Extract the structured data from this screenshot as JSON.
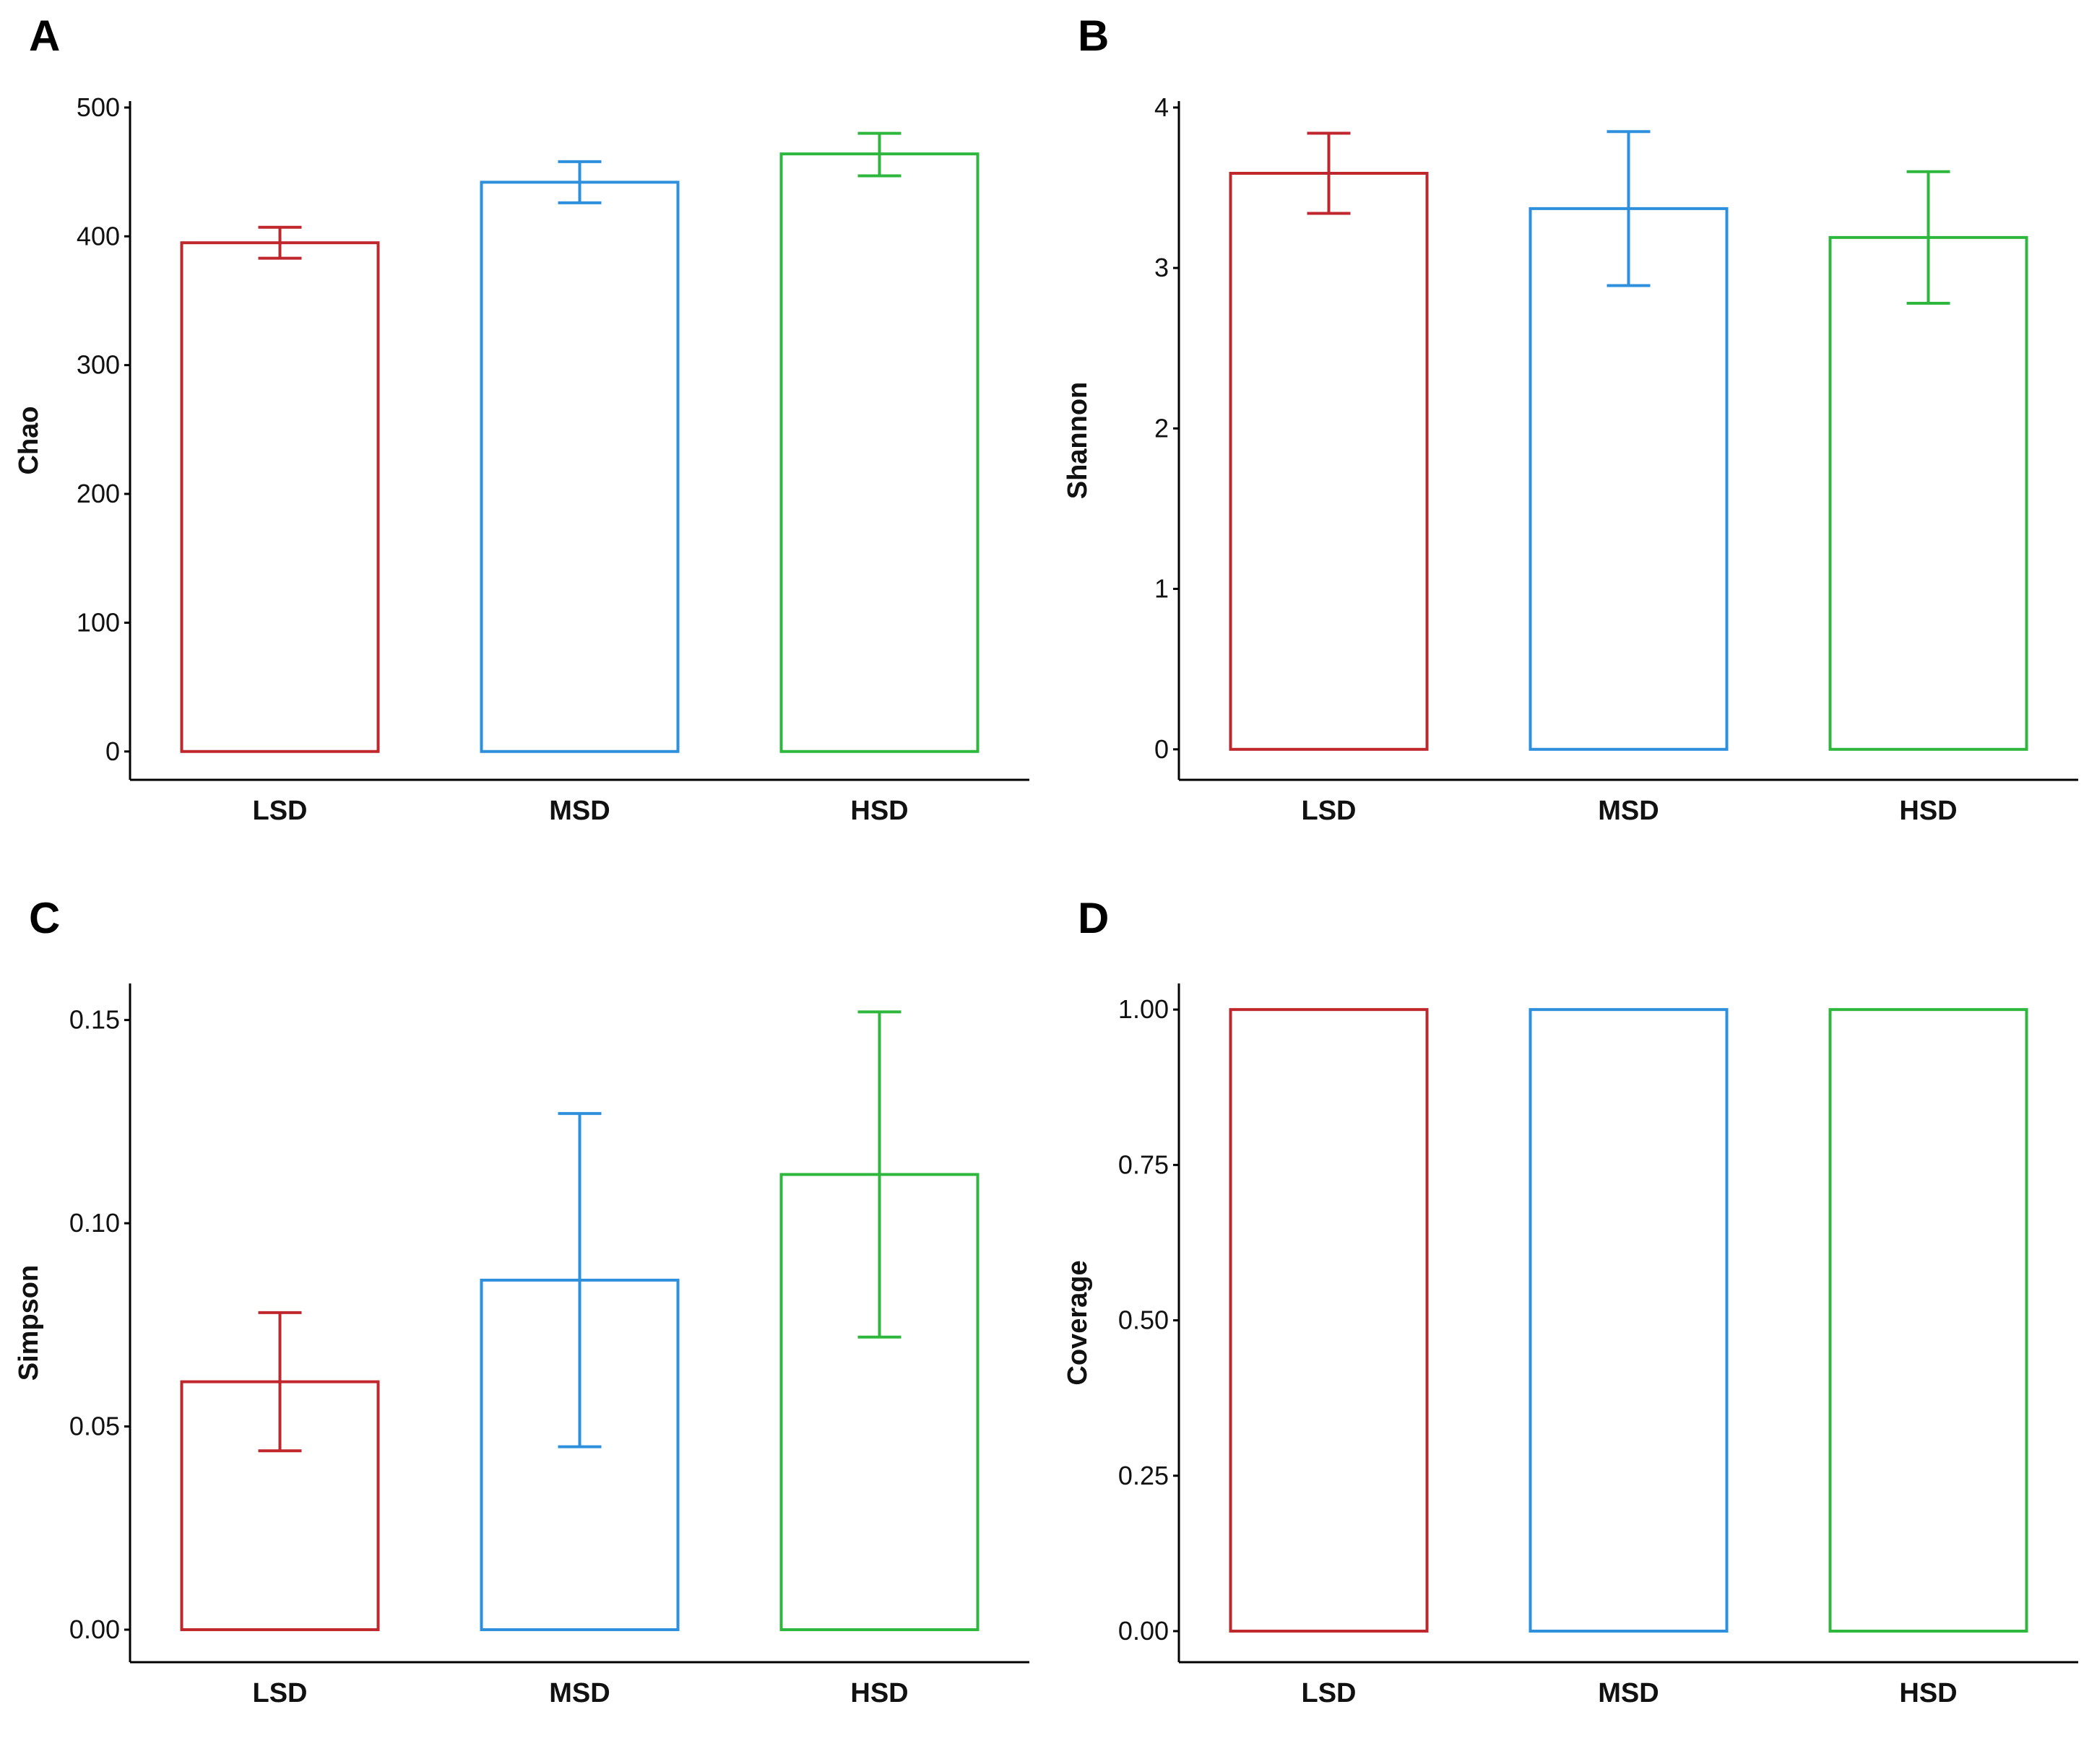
{
  "colors": {
    "LSD": "#c0272d",
    "MSD": "#2e8fdc",
    "HSD": "#2db83d"
  },
  "chart_data": [
    {
      "panel": "A",
      "type": "bar",
      "categories": [
        "LSD",
        "MSD",
        "HSD"
      ],
      "values": [
        395,
        442,
        464
      ],
      "error_low": [
        383,
        426,
        447
      ],
      "error_high": [
        407,
        458,
        480
      ],
      "ylabel": "Chao",
      "xlabel": "",
      "ylim": [
        -22,
        505
      ],
      "yticks": [
        0,
        100,
        200,
        300,
        400,
        500
      ],
      "ytick_labels": [
        "0",
        "100",
        "200",
        "300",
        "400",
        "500"
      ]
    },
    {
      "panel": "B",
      "type": "bar",
      "categories": [
        "LSD",
        "MSD",
        "HSD"
      ],
      "values": [
        3.59,
        3.37,
        3.19
      ],
      "error_low": [
        3.34,
        2.89,
        2.78
      ],
      "error_high": [
        3.84,
        3.85,
        3.6
      ],
      "ylabel": "Shannon",
      "xlabel": "",
      "ylim": [
        -0.19,
        4.04
      ],
      "yticks": [
        0,
        1,
        2,
        3,
        4
      ],
      "ytick_labels": [
        "0",
        "1",
        "2",
        "3",
        "4"
      ]
    },
    {
      "panel": "C",
      "type": "bar",
      "categories": [
        "LSD",
        "MSD",
        "HSD"
      ],
      "values": [
        0.061,
        0.086,
        0.112
      ],
      "error_low": [
        0.044,
        0.045,
        0.072
      ],
      "error_high": [
        0.078,
        0.127,
        0.152
      ],
      "ylabel": "Simpson",
      "xlabel": "",
      "ylim": [
        -0.008,
        0.159
      ],
      "yticks": [
        0.0,
        0.05,
        0.1,
        0.15
      ],
      "ytick_labels": [
        "0.00",
        "0.05",
        "0.10",
        "0.15"
      ]
    },
    {
      "panel": "D",
      "type": "bar",
      "categories": [
        "LSD",
        "MSD",
        "HSD"
      ],
      "values": [
        1.0,
        1.0,
        1.0
      ],
      "error_low": [
        1.0,
        1.0,
        1.0
      ],
      "error_high": [
        1.0,
        1.0,
        1.0
      ],
      "ylabel": "Coverage",
      "xlabel": "",
      "ylim": [
        -0.05,
        1.042
      ],
      "yticks": [
        0.0,
        0.25,
        0.5,
        0.75,
        1.0
      ],
      "ytick_labels": [
        "0.00",
        "0.25",
        "0.50",
        "0.75",
        "1.00"
      ]
    }
  ]
}
